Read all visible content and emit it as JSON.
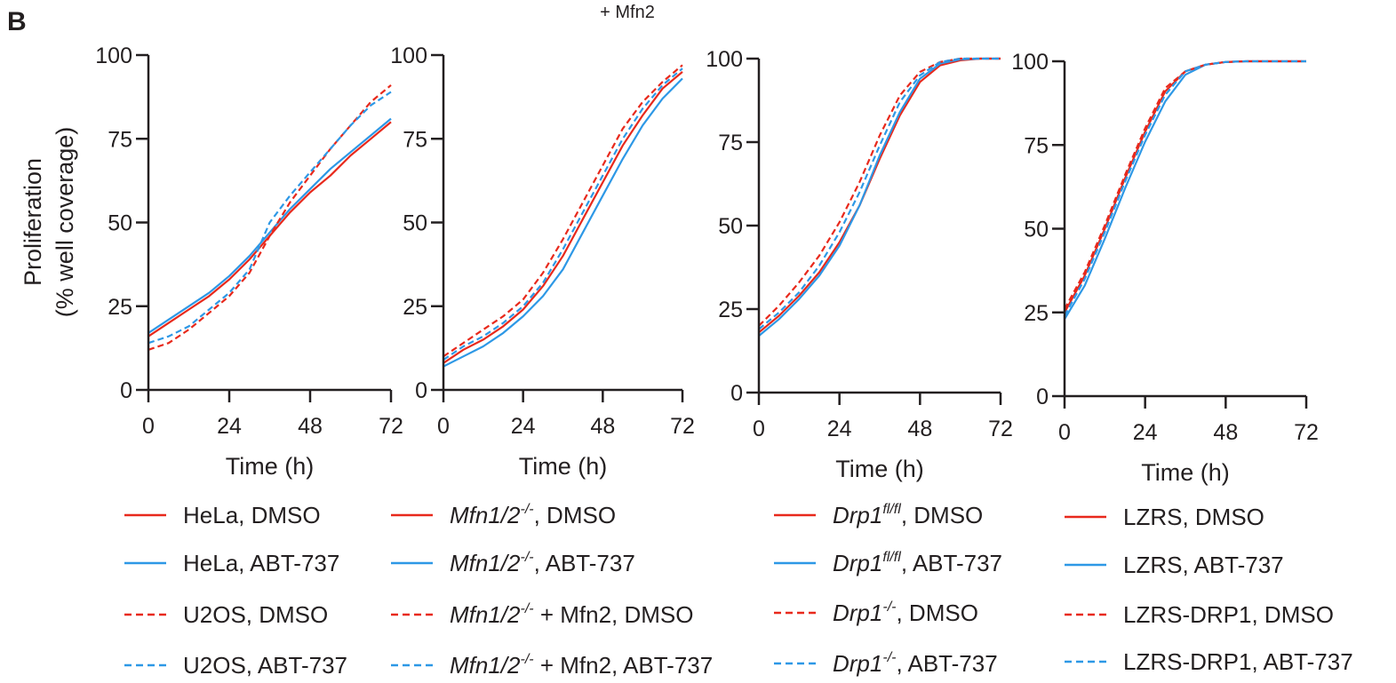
{
  "figure": {
    "panel_label": "B",
    "top_partial_text": "+ Mfn2"
  },
  "colors": {
    "dmso": "#e8291c",
    "abt737": "#2d98e6",
    "axis": "#231f20"
  },
  "legends": [
    [
      {
        "label": "HeLa, DMSO",
        "color": "#e8291c",
        "dash": false
      },
      {
        "label": "HeLa, ABT-737",
        "color": "#2d98e6",
        "dash": false
      },
      {
        "label": "U2OS, DMSO",
        "color": "#e8291c",
        "dash": true
      },
      {
        "label": "U2OS, ABT-737",
        "color": "#2d98e6",
        "dash": true
      }
    ],
    [
      {
        "italic": "Mfn1/2",
        "sup": "-/-",
        "rest": ", DMSO",
        "color": "#e8291c",
        "dash": false
      },
      {
        "italic": "Mfn1/2",
        "sup": "-/-",
        "rest": ", ABT-737",
        "color": "#2d98e6",
        "dash": false
      },
      {
        "italic": "Mfn1/2",
        "sup": "-/-",
        "rest": " + Mfn2, DMSO",
        "color": "#e8291c",
        "dash": true
      },
      {
        "italic": "Mfn1/2",
        "sup": "-/-",
        "rest": " + Mfn2, ABT-737",
        "color": "#2d98e6",
        "dash": true
      }
    ],
    [
      {
        "italic": "Drp1",
        "sup": "fl/fl",
        "rest": ", DMSO",
        "color": "#e8291c",
        "dash": false
      },
      {
        "italic": "Drp1",
        "sup": "fl/fl",
        "rest": ", ABT-737",
        "color": "#2d98e6",
        "dash": false
      },
      {
        "italic": "Drp1",
        "sup": "-/-",
        "rest": ", DMSO",
        "color": "#e8291c",
        "dash": true
      },
      {
        "italic": "Drp1",
        "sup": "-/-",
        "rest": ", ABT-737",
        "color": "#2d98e6",
        "dash": true
      }
    ],
    [
      {
        "label": "LZRS, DMSO",
        "color": "#e8291c",
        "dash": false
      },
      {
        "label": "LZRS, ABT-737",
        "color": "#2d98e6",
        "dash": false
      },
      {
        "label": "LZRS-DRP1, DMSO",
        "color": "#e8291c",
        "dash": true
      },
      {
        "label": "LZRS-DRP1, ABT-737",
        "color": "#2d98e6",
        "dash": true
      }
    ]
  ],
  "chart_data": [
    {
      "type": "line",
      "xlabel": "Time (h)",
      "ylabel": "Proliferation",
      "ylabel2": "(% well coverage)",
      "xlim": [
        0,
        72
      ],
      "ylim": [
        0,
        100
      ],
      "xticks": [
        0,
        24,
        48,
        72
      ],
      "yticks": [
        0,
        25,
        50,
        75,
        100
      ],
      "x": [
        0,
        6,
        12,
        18,
        24,
        30,
        36,
        42,
        48,
        54,
        60,
        66,
        72
      ],
      "series": [
        {
          "name": "HeLa, DMSO",
          "color": "#e8291c",
          "dash": false,
          "values": [
            16,
            20,
            24,
            28,
            33,
            39,
            46,
            53,
            59,
            64,
            70,
            75,
            80
          ]
        },
        {
          "name": "HeLa, ABT-737",
          "color": "#2d98e6",
          "dash": false,
          "values": [
            17,
            21,
            25,
            29,
            34,
            40,
            47,
            54,
            60,
            66,
            71,
            76,
            81
          ]
        },
        {
          "name": "U2OS, DMSO",
          "color": "#e8291c",
          "dash": true,
          "values": [
            12,
            14,
            18,
            23,
            28,
            35,
            46,
            56,
            64,
            72,
            79,
            86,
            91
          ]
        },
        {
          "name": "U2OS, ABT-737",
          "color": "#2d98e6",
          "dash": true,
          "values": [
            14,
            16,
            19,
            24,
            29,
            36,
            50,
            58,
            65,
            72,
            79,
            85,
            89
          ]
        }
      ]
    },
    {
      "type": "line",
      "xlabel": "Time (h)",
      "xlim": [
        0,
        72
      ],
      "ylim": [
        0,
        100
      ],
      "xticks": [
        0,
        24,
        48,
        72
      ],
      "yticks": [
        0,
        25,
        50,
        75,
        100
      ],
      "x": [
        0,
        6,
        12,
        18,
        24,
        30,
        36,
        42,
        48,
        54,
        60,
        66,
        72
      ],
      "series": [
        {
          "name": "Mfn1/2-/-, DMSO",
          "color": "#e8291c",
          "dash": false,
          "values": [
            8,
            12,
            15,
            19,
            24,
            31,
            40,
            51,
            62,
            73,
            82,
            90,
            95
          ]
        },
        {
          "name": "Mfn1/2-/-, ABT-737",
          "color": "#2d98e6",
          "dash": false,
          "values": [
            7,
            10,
            13,
            17,
            22,
            28,
            36,
            47,
            58,
            69,
            79,
            87,
            93
          ]
        },
        {
          "name": "Mfn1/2-/- + Mfn2, DMSO",
          "color": "#e8291c",
          "dash": true,
          "values": [
            10,
            14,
            18,
            22,
            27,
            35,
            45,
            56,
            67,
            78,
            86,
            92,
            97
          ]
        },
        {
          "name": "Mfn1/2-/- + Mfn2, ABT-737",
          "color": "#2d98e6",
          "dash": true,
          "values": [
            9,
            13,
            16,
            20,
            25,
            32,
            42,
            53,
            64,
            75,
            84,
            91,
            96
          ]
        }
      ]
    },
    {
      "type": "line",
      "xlabel": "Time (h)",
      "xlim": [
        0,
        72
      ],
      "ylim": [
        0,
        100
      ],
      "xticks": [
        0,
        24,
        48,
        72
      ],
      "yticks": [
        0,
        25,
        50,
        75,
        100
      ],
      "x": [
        0,
        6,
        12,
        18,
        24,
        30,
        36,
        42,
        48,
        54,
        60,
        66,
        72
      ],
      "series": [
        {
          "name": "Drp1fl/fl, DMSO",
          "color": "#e8291c",
          "dash": false,
          "values": [
            18,
            23,
            29,
            36,
            45,
            56,
            70,
            83,
            93,
            98,
            99.5,
            100,
            100
          ]
        },
        {
          "name": "Drp1fl/fl, ABT-737",
          "color": "#2d98e6",
          "dash": false,
          "values": [
            17,
            22,
            28,
            35,
            44,
            56,
            71,
            84,
            94,
            98.5,
            99.8,
            100,
            100
          ]
        },
        {
          "name": "Drp1-/-, DMSO",
          "color": "#e8291c",
          "dash": true,
          "values": [
            20,
            26,
            33,
            41,
            51,
            63,
            77,
            89,
            96,
            99,
            100,
            100,
            100
          ]
        },
        {
          "name": "Drp1-/-, ABT-737",
          "color": "#2d98e6",
          "dash": true,
          "values": [
            19,
            24,
            30,
            38,
            48,
            60,
            74,
            87,
            95,
            99,
            100,
            100,
            100
          ]
        }
      ]
    },
    {
      "type": "line",
      "xlabel": "Time (h)",
      "xlim": [
        0,
        72
      ],
      "ylim": [
        0,
        100
      ],
      "xticks": [
        0,
        24,
        48,
        72
      ],
      "yticks": [
        0,
        25,
        50,
        75,
        100
      ],
      "x": [
        0,
        6,
        12,
        18,
        24,
        30,
        36,
        42,
        48,
        54,
        60,
        66,
        72
      ],
      "series": [
        {
          "name": "LZRS, DMSO",
          "color": "#e8291c",
          "dash": false,
          "values": [
            25,
            36,
            50,
            65,
            79,
            91,
            97,
            99,
            99.8,
            100,
            100,
            100,
            100
          ]
        },
        {
          "name": "LZRS, ABT-737",
          "color": "#2d98e6",
          "dash": false,
          "values": [
            23,
            33,
            47,
            62,
            76,
            88,
            96,
            99,
            99.8,
            100,
            100,
            100,
            100
          ]
        },
        {
          "name": "LZRS-DRP1, DMSO",
          "color": "#e8291c",
          "dash": true,
          "values": [
            26,
            37,
            51,
            66,
            80,
            92,
            97,
            99,
            99.8,
            100,
            100,
            100,
            100
          ]
        },
        {
          "name": "LZRS-DRP1, ABT-737",
          "color": "#2d98e6",
          "dash": true,
          "values": [
            24,
            35,
            49,
            64,
            78,
            90,
            97,
            99,
            99.8,
            100,
            100,
            100,
            100
          ]
        }
      ]
    }
  ]
}
